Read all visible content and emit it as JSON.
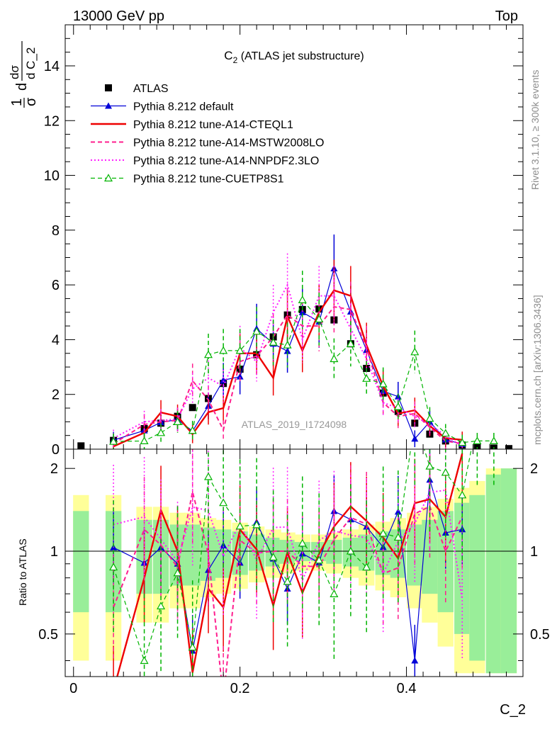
{
  "header": {
    "left": "13000 GeV pp",
    "right": "Top"
  },
  "side_labels": {
    "rivet": "Rivet 3.1.10, ≥ 300k events",
    "mcplots": "mcplots.cern.ch [arXiv:1306.3436]"
  },
  "watermark": "ATLAS_2019_I1724098",
  "chart_data": {
    "type": "scatter",
    "title": "C",
    "title_sub": "2",
    "title_rest": " (ATLAS jet substructure)",
    "xlabel": "C_2",
    "ylabel": "dσ/dC_2 /σ",
    "ratio_ylabel": "Ratio to ATLAS",
    "xlim": [
      -0.01,
      0.54
    ],
    "ylim": [
      0,
      15.5
    ],
    "ratio_ylim": [
      0.35,
      2.35
    ],
    "x_ticks": [
      "0",
      "0.2",
      "0.4"
    ],
    "x_tick_values": [
      0,
      0.2,
      0.4
    ],
    "y_ticks": [
      "0",
      "2",
      "4",
      "6",
      "8",
      "10",
      "12",
      "14"
    ],
    "y_tick_values": [
      0,
      2,
      4,
      6,
      8,
      10,
      12,
      14
    ],
    "ratio_ticks": [
      "0.5",
      "1",
      "2"
    ],
    "ratio_tick_values": [
      0.5,
      1,
      2
    ],
    "x": [
      0.009,
      0.048,
      0.085,
      0.105,
      0.125,
      0.143,
      0.162,
      0.18,
      0.2,
      0.22,
      0.24,
      0.257,
      0.275,
      0.295,
      0.313,
      0.333,
      0.352,
      0.372,
      0.39,
      0.41,
      0.428,
      0.447,
      0.467,
      0.485,
      0.505,
      0.523
    ],
    "band_inner": [
      0.4,
      0.4,
      0.3,
      0.3,
      0.25,
      0.25,
      0.22,
      0.2,
      0.18,
      0.15,
      0.12,
      0.1,
      0.08,
      0.08,
      0.1,
      0.12,
      0.15,
      0.18,
      0.2,
      0.25,
      0.3,
      0.4,
      0.5,
      0.6,
      0.9,
      1.0
    ],
    "band_outer": [
      0.6,
      0.6,
      0.45,
      0.45,
      0.38,
      0.38,
      0.32,
      0.3,
      0.27,
      0.23,
      0.2,
      0.17,
      0.15,
      0.15,
      0.17,
      0.2,
      0.25,
      0.28,
      0.32,
      0.38,
      0.45,
      0.55,
      0.7,
      0.8,
      1.0,
      1.0
    ],
    "series": [
      {
        "name": "ATLAS",
        "style": "data",
        "color": "#000000",
        "values": [
          0.12,
          0.32,
          0.75,
          0.95,
          1.2,
          1.52,
          1.85,
          2.4,
          2.92,
          3.45,
          4.1,
          4.9,
          5.1,
          5.12,
          4.72,
          3.85,
          2.95,
          2.05,
          1.38,
          0.95,
          0.55,
          0.3,
          0.15,
          0.07,
          0.04,
          0.02
        ]
      },
      {
        "name": "Pythia 8.212 default",
        "style": "solid-marker",
        "color": "#0000d8",
        "marker": "triangle-filled",
        "values": [
          null,
          0.33,
          0.68,
          0.98,
          1.08,
          0.66,
          1.58,
          2.52,
          2.65,
          4.4,
          3.85,
          3.58,
          5.0,
          4.65,
          6.6,
          5.02,
          3.62,
          2.12,
          1.92,
          0.38,
          1.0,
          0.35,
          0.18,
          null,
          null,
          null
        ]
      },
      {
        "name": "Pythia 8.212 tune-A14-CTEQL1",
        "style": "solid",
        "color": "#ee0000",
        "values": [
          null,
          0.1,
          0.6,
          1.34,
          1.2,
          0.55,
          1.35,
          1.5,
          3.5,
          3.5,
          2.6,
          4.85,
          3.6,
          5.0,
          5.8,
          5.6,
          3.8,
          2.3,
          1.3,
          1.42,
          0.85,
          0.4,
          0.34,
          null,
          null,
          null
        ]
      },
      {
        "name": "Pythia 8.212 tune-A14-MSTW2008LO",
        "style": "dashed",
        "color": "#ff1e8e",
        "values": [
          null,
          0.2,
          0.9,
          1.0,
          1.05,
          2.5,
          1.8,
          0.7,
          3.2,
          3.4,
          4.1,
          4.9,
          4.5,
          4.5,
          5.2,
          5.1,
          3.7,
          1.7,
          1.2,
          1.3,
          0.8,
          0.3,
          0.2,
          null,
          null,
          null
        ]
      },
      {
        "name": "Pythia 8.212 tune-A14-NNPDF2.3LO",
        "style": "dotted",
        "color": "#ff1eff",
        "values": [
          null,
          0.4,
          1.0,
          1.05,
          1.1,
          2.2,
          2.6,
          2.3,
          3.7,
          3.2,
          5.0,
          6.0,
          4.0,
          5.6,
          5.6,
          4.4,
          3.3,
          1.7,
          1.5,
          1.2,
          0.9,
          0.5,
          0.1,
          null,
          null,
          null
        ]
      },
      {
        "name": "Pythia 8.212 tune-CUETP8S1",
        "style": "dashed-marker",
        "color": "#00b400",
        "marker": "triangle-open",
        "values": [
          null,
          0.28,
          0.3,
          0.6,
          1.0,
          0.68,
          3.45,
          3.6,
          3.6,
          4.3,
          3.9,
          3.8,
          5.45,
          4.75,
          3.3,
          3.85,
          2.58,
          2.38,
          1.55,
          3.55,
          1.12,
          0.58,
          0.24,
          0.3,
          0.3,
          null
        ]
      }
    ]
  }
}
